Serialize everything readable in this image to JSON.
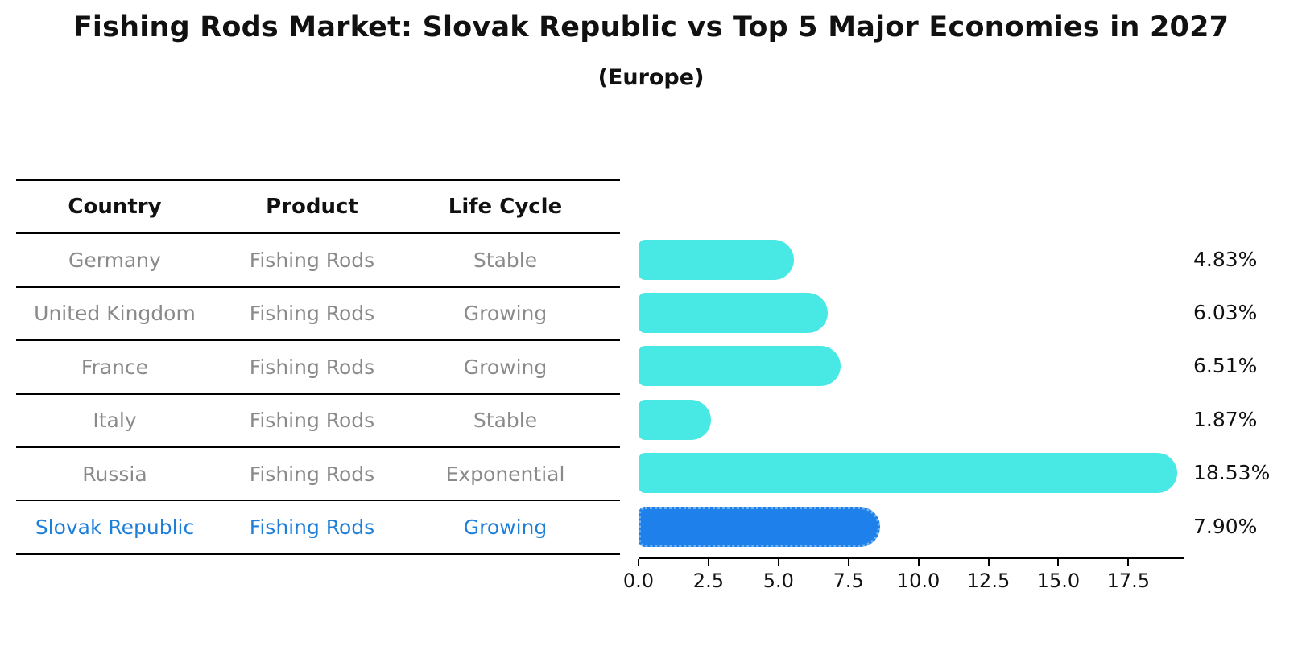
{
  "title": "Fishing Rods Market: Slovak Republic vs Top 5 Major Economies in 2027",
  "subtitle": "(Europe)",
  "table": {
    "headers": [
      "Country",
      "Product",
      "Life Cycle"
    ],
    "rows": [
      {
        "country": "Germany",
        "product": "Fishing Rods",
        "life_cycle": "Stable",
        "highlighted": false
      },
      {
        "country": "United Kingdom",
        "product": "Fishing Rods",
        "life_cycle": "Growing",
        "highlighted": false
      },
      {
        "country": "France",
        "product": "Fishing Rods",
        "life_cycle": "Growing",
        "highlighted": false
      },
      {
        "country": "Italy",
        "product": "Fishing Rods",
        "life_cycle": "Stable",
        "highlighted": false
      },
      {
        "country": "Russia",
        "product": "Fishing Rods",
        "life_cycle": "Exponential",
        "highlighted": false
      },
      {
        "country": "Slovak Republic",
        "product": "Fishing Rods",
        "life_cycle": "Growing",
        "highlighted": true
      }
    ]
  },
  "chart_data": {
    "type": "bar",
    "orientation": "horizontal",
    "title": "Fishing Rods Market: Slovak Republic vs Top 5 Major Economies in 2027",
    "subtitle": "(Europe)",
    "categories": [
      "Germany",
      "United Kingdom",
      "France",
      "Italy",
      "Russia",
      "Slovak Republic"
    ],
    "values": [
      4.83,
      6.03,
      6.51,
      1.87,
      18.53,
      7.9
    ],
    "value_labels": [
      "4.83%",
      "6.03%",
      "6.51%",
      "1.87%",
      "18.53%",
      "7.90%"
    ],
    "x_ticks": [
      0.0,
      2.5,
      5.0,
      7.5,
      10.0,
      12.5,
      15.0,
      17.5
    ],
    "x_tick_labels": [
      "0.0",
      "2.5",
      "5.0",
      "7.5",
      "10.0",
      "12.5",
      "15.0",
      "17.5"
    ],
    "xlim": [
      0,
      19.5
    ],
    "xlabel": "",
    "ylabel": "",
    "grid": false,
    "legend": "none",
    "highlight_index": 5
  },
  "colors": {
    "bar": "#48e8e4",
    "highlight_bar": "#1e80eb",
    "highlight_text": "#1e7fd9",
    "table_text": "#8a8a8a",
    "header_text": "#111111",
    "axis": "#000000"
  }
}
